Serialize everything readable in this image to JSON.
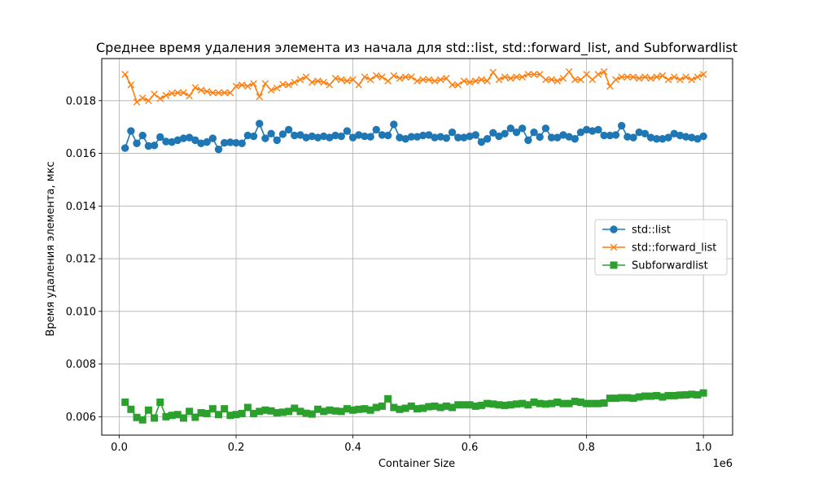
{
  "chart_data": {
    "type": "line",
    "title": "Среднее время удаления элемента из начала для std::list, std::forward_list, and Subforwardlist",
    "xlabel": "Container Size",
    "ylabel": "Время удаления элемента, мкс",
    "x_offset_label": "1e6",
    "xlim": [
      -0.03,
      1.05
    ],
    "ylim": [
      0.0053,
      0.0196
    ],
    "x_ticks": [
      0.0,
      0.2,
      0.4,
      0.6,
      0.8,
      1.0
    ],
    "x_tick_labels": [
      "0.0",
      "0.2",
      "0.4",
      "0.6",
      "0.8",
      "1.0"
    ],
    "y_ticks": [
      0.006,
      0.008,
      0.01,
      0.012,
      0.014,
      0.016,
      0.018
    ],
    "y_tick_labels": [
      "0.006",
      "0.008",
      "0.010",
      "0.012",
      "0.014",
      "0.016",
      "0.018"
    ],
    "grid": true,
    "legend_position": "center-right",
    "x": [
      0.01,
      0.02,
      0.03,
      0.04,
      0.05,
      0.06,
      0.07,
      0.08,
      0.09,
      0.1,
      0.11,
      0.12,
      0.13,
      0.14,
      0.15,
      0.16,
      0.17,
      0.18,
      0.19,
      0.2,
      0.21,
      0.22,
      0.23,
      0.24,
      0.25,
      0.26,
      0.27,
      0.28,
      0.29,
      0.3,
      0.31,
      0.32,
      0.33,
      0.34,
      0.35,
      0.36,
      0.37,
      0.38,
      0.39,
      0.4,
      0.41,
      0.42,
      0.43,
      0.44,
      0.45,
      0.46,
      0.47,
      0.48,
      0.49,
      0.5,
      0.51,
      0.52,
      0.53,
      0.54,
      0.55,
      0.56,
      0.57,
      0.58,
      0.59,
      0.6,
      0.61,
      0.62,
      0.63,
      0.64,
      0.65,
      0.66,
      0.67,
      0.68,
      0.69,
      0.7,
      0.71,
      0.72,
      0.73,
      0.74,
      0.75,
      0.76,
      0.77,
      0.78,
      0.79,
      0.8,
      0.81,
      0.82,
      0.83,
      0.84,
      0.85,
      0.86,
      0.87,
      0.88,
      0.89,
      0.9,
      0.91,
      0.92,
      0.93,
      0.94,
      0.95,
      0.96,
      0.97,
      0.98,
      0.99,
      1.0
    ],
    "series": [
      {
        "name": "std::list",
        "color": "#1f77b4",
        "marker": "circle",
        "values": [
          0.0162,
          0.01685,
          0.01638,
          0.01668,
          0.01628,
          0.0163,
          0.01662,
          0.01645,
          0.01643,
          0.0165,
          0.01657,
          0.0166,
          0.0165,
          0.01638,
          0.01643,
          0.01657,
          0.01615,
          0.0164,
          0.01642,
          0.0164,
          0.01638,
          0.01668,
          0.01665,
          0.01713,
          0.01657,
          0.01675,
          0.0165,
          0.01673,
          0.0169,
          0.01668,
          0.0167,
          0.0166,
          0.01665,
          0.0166,
          0.01665,
          0.0166,
          0.01668,
          0.01665,
          0.01685,
          0.0166,
          0.0167,
          0.01665,
          0.01663,
          0.0169,
          0.0167,
          0.01668,
          0.0171,
          0.0166,
          0.01655,
          0.01663,
          0.01663,
          0.01668,
          0.0167,
          0.0166,
          0.01663,
          0.01658,
          0.0168,
          0.0166,
          0.0166,
          0.01665,
          0.0167,
          0.01643,
          0.01655,
          0.01678,
          0.01665,
          0.01675,
          0.01695,
          0.0168,
          0.01695,
          0.0165,
          0.0168,
          0.01662,
          0.01695,
          0.0166,
          0.0166,
          0.0167,
          0.01663,
          0.01655,
          0.0168,
          0.0169,
          0.01685,
          0.0169,
          0.01668,
          0.01668,
          0.0167,
          0.01705,
          0.01663,
          0.0166,
          0.0168,
          0.01675,
          0.0166,
          0.01655,
          0.01655,
          0.0166,
          0.01675,
          0.01668,
          0.01663,
          0.0166,
          0.01655,
          0.01665
        ]
      },
      {
        "name": "std::forward_list",
        "color": "#ff7f0e",
        "marker": "x",
        "values": [
          0.019,
          0.0186,
          0.01795,
          0.0181,
          0.018,
          0.01825,
          0.01808,
          0.0182,
          0.01828,
          0.0183,
          0.0183,
          0.01818,
          0.0185,
          0.0184,
          0.01835,
          0.0183,
          0.0183,
          0.0183,
          0.0183,
          0.01855,
          0.0186,
          0.01855,
          0.01865,
          0.01815,
          0.01865,
          0.0184,
          0.01848,
          0.01862,
          0.0186,
          0.0187,
          0.0188,
          0.0189,
          0.0187,
          0.01875,
          0.0187,
          0.0186,
          0.01885,
          0.0188,
          0.01875,
          0.0188,
          0.0186,
          0.0189,
          0.0188,
          0.01895,
          0.0189,
          0.01875,
          0.01895,
          0.01885,
          0.0189,
          0.0189,
          0.01875,
          0.0188,
          0.0188,
          0.01875,
          0.0188,
          0.01885,
          0.0186,
          0.0186,
          0.01875,
          0.0187,
          0.01875,
          0.0188,
          0.01875,
          0.01908,
          0.0188,
          0.0189,
          0.01885,
          0.0189,
          0.0189,
          0.019,
          0.019,
          0.019,
          0.0188,
          0.0188,
          0.01875,
          0.01885,
          0.0191,
          0.0188,
          0.0188,
          0.019,
          0.0188,
          0.019,
          0.0191,
          0.01855,
          0.0188,
          0.0189,
          0.0189,
          0.0189,
          0.01885,
          0.0189,
          0.01885,
          0.0189,
          0.01895,
          0.0188,
          0.0189,
          0.0188,
          0.0189,
          0.0188,
          0.0189,
          0.019
        ]
      },
      {
        "name": "Subforwardlist",
        "color": "#2ca02c",
        "marker": "square",
        "values": [
          0.00655,
          0.00628,
          0.00597,
          0.00588,
          0.00625,
          0.00595,
          0.00655,
          0.006,
          0.00605,
          0.00608,
          0.00595,
          0.0062,
          0.00598,
          0.00615,
          0.00612,
          0.0063,
          0.00608,
          0.0063,
          0.00605,
          0.00608,
          0.00612,
          0.00635,
          0.00612,
          0.0062,
          0.00625,
          0.00622,
          0.00615,
          0.00617,
          0.0062,
          0.00632,
          0.0062,
          0.00613,
          0.0061,
          0.00628,
          0.0062,
          0.00625,
          0.00622,
          0.0062,
          0.0063,
          0.00625,
          0.00628,
          0.0063,
          0.00625,
          0.00635,
          0.0064,
          0.00668,
          0.00635,
          0.00628,
          0.00632,
          0.0064,
          0.0063,
          0.00632,
          0.00638,
          0.0064,
          0.00635,
          0.0064,
          0.00635,
          0.00645,
          0.00645,
          0.00645,
          0.0064,
          0.00643,
          0.0065,
          0.00648,
          0.00645,
          0.00643,
          0.00645,
          0.00648,
          0.0065,
          0.00645,
          0.00655,
          0.0065,
          0.00648,
          0.0065,
          0.00655,
          0.0065,
          0.0065,
          0.00658,
          0.00655,
          0.0065,
          0.0065,
          0.0065,
          0.00652,
          0.0067,
          0.0067,
          0.00672,
          0.00672,
          0.0067,
          0.00675,
          0.00678,
          0.00678,
          0.0068,
          0.00675,
          0.0068,
          0.0068,
          0.00682,
          0.00683,
          0.00685,
          0.00683,
          0.0069
        ]
      }
    ]
  }
}
